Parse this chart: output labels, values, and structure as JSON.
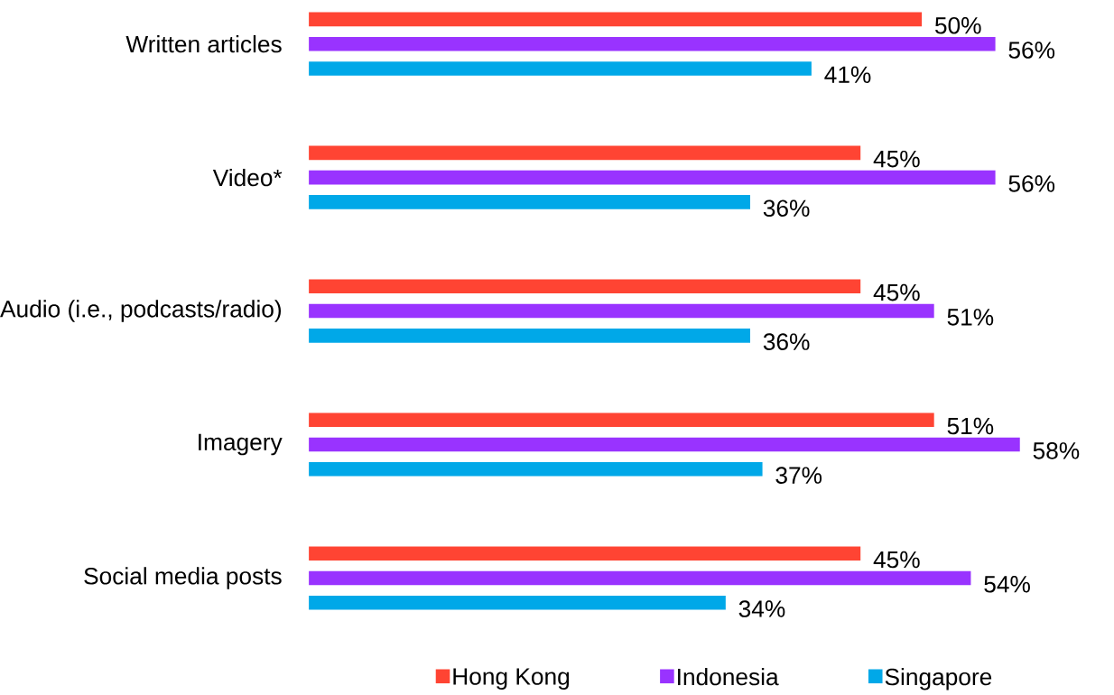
{
  "chart_data": {
    "type": "bar",
    "orientation": "horizontal",
    "categories": [
      "Written articles",
      "Video*",
      "Audio (i.e., podcasts/radio)",
      "Imagery",
      "Social media posts"
    ],
    "series": [
      {
        "name": "Hong Kong",
        "color": "#ff4433",
        "values": [
          50,
          45,
          45,
          51,
          45
        ],
        "value_labels": [
          "50%",
          "45%",
          "45%",
          "51%",
          "45%"
        ]
      },
      {
        "name": "Indonesia",
        "color": "#9933ff",
        "values": [
          56,
          56,
          51,
          58,
          54
        ],
        "value_labels": [
          "56%",
          "56%",
          "51%",
          "58%",
          "54%"
        ]
      },
      {
        "name": "Singapore",
        "color": "#00a8e8",
        "values": [
          41,
          36,
          36,
          37,
          34
        ],
        "value_labels": [
          "41%",
          "36%",
          "36%",
          "37%",
          "34%"
        ]
      }
    ],
    "legend": "bottom"
  }
}
